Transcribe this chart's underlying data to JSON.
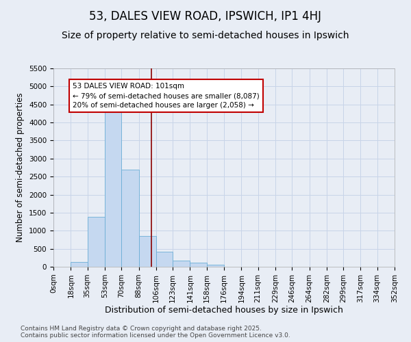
{
  "title1": "53, DALES VIEW ROAD, IPSWICH, IP1 4HJ",
  "title2": "Size of property relative to semi-detached houses in Ipswich",
  "xlabel": "Distribution of semi-detached houses by size in Ipswich",
  "ylabel": "Number of semi-detached properties",
  "bin_edges": [
    0,
    18,
    35,
    53,
    70,
    88,
    106,
    123,
    141,
    158,
    176,
    194,
    211,
    229,
    246,
    264,
    282,
    299,
    317,
    334,
    352
  ],
  "bin_labels": [
    "0sqm",
    "18sqm",
    "35sqm",
    "53sqm",
    "70sqm",
    "88sqm",
    "106sqm",
    "123sqm",
    "141sqm",
    "158sqm",
    "176sqm",
    "194sqm",
    "211sqm",
    "229sqm",
    "246sqm",
    "264sqm",
    "282sqm",
    "299sqm",
    "317sqm",
    "334sqm",
    "352sqm"
  ],
  "bar_values": [
    5,
    130,
    1380,
    4300,
    2700,
    860,
    420,
    175,
    105,
    60,
    0,
    0,
    0,
    0,
    0,
    0,
    0,
    0,
    0,
    0
  ],
  "bar_color": "#c5d8f0",
  "bar_edge_color": "#6baed6",
  "grid_color": "#c8d4e8",
  "background_color": "#e8edf5",
  "vline_x": 101,
  "vline_color": "#8b0000",
  "annotation_text": "53 DALES VIEW ROAD: 101sqm\n← 79% of semi-detached houses are smaller (8,087)\n20% of semi-detached houses are larger (2,058) →",
  "annotation_box_color": "white",
  "annotation_box_edge_color": "#c00000",
  "ylim_max": 5500,
  "yticks": [
    0,
    500,
    1000,
    1500,
    2000,
    2500,
    3000,
    3500,
    4000,
    4500,
    5000,
    5500
  ],
  "footnote": "Contains HM Land Registry data © Crown copyright and database right 2025.\nContains public sector information licensed under the Open Government Licence v3.0.",
  "title1_fontsize": 12,
  "title2_fontsize": 10,
  "xlabel_fontsize": 9,
  "ylabel_fontsize": 8.5,
  "tick_fontsize": 7.5,
  "annotation_fontsize": 7.5,
  "footnote_fontsize": 6.5
}
